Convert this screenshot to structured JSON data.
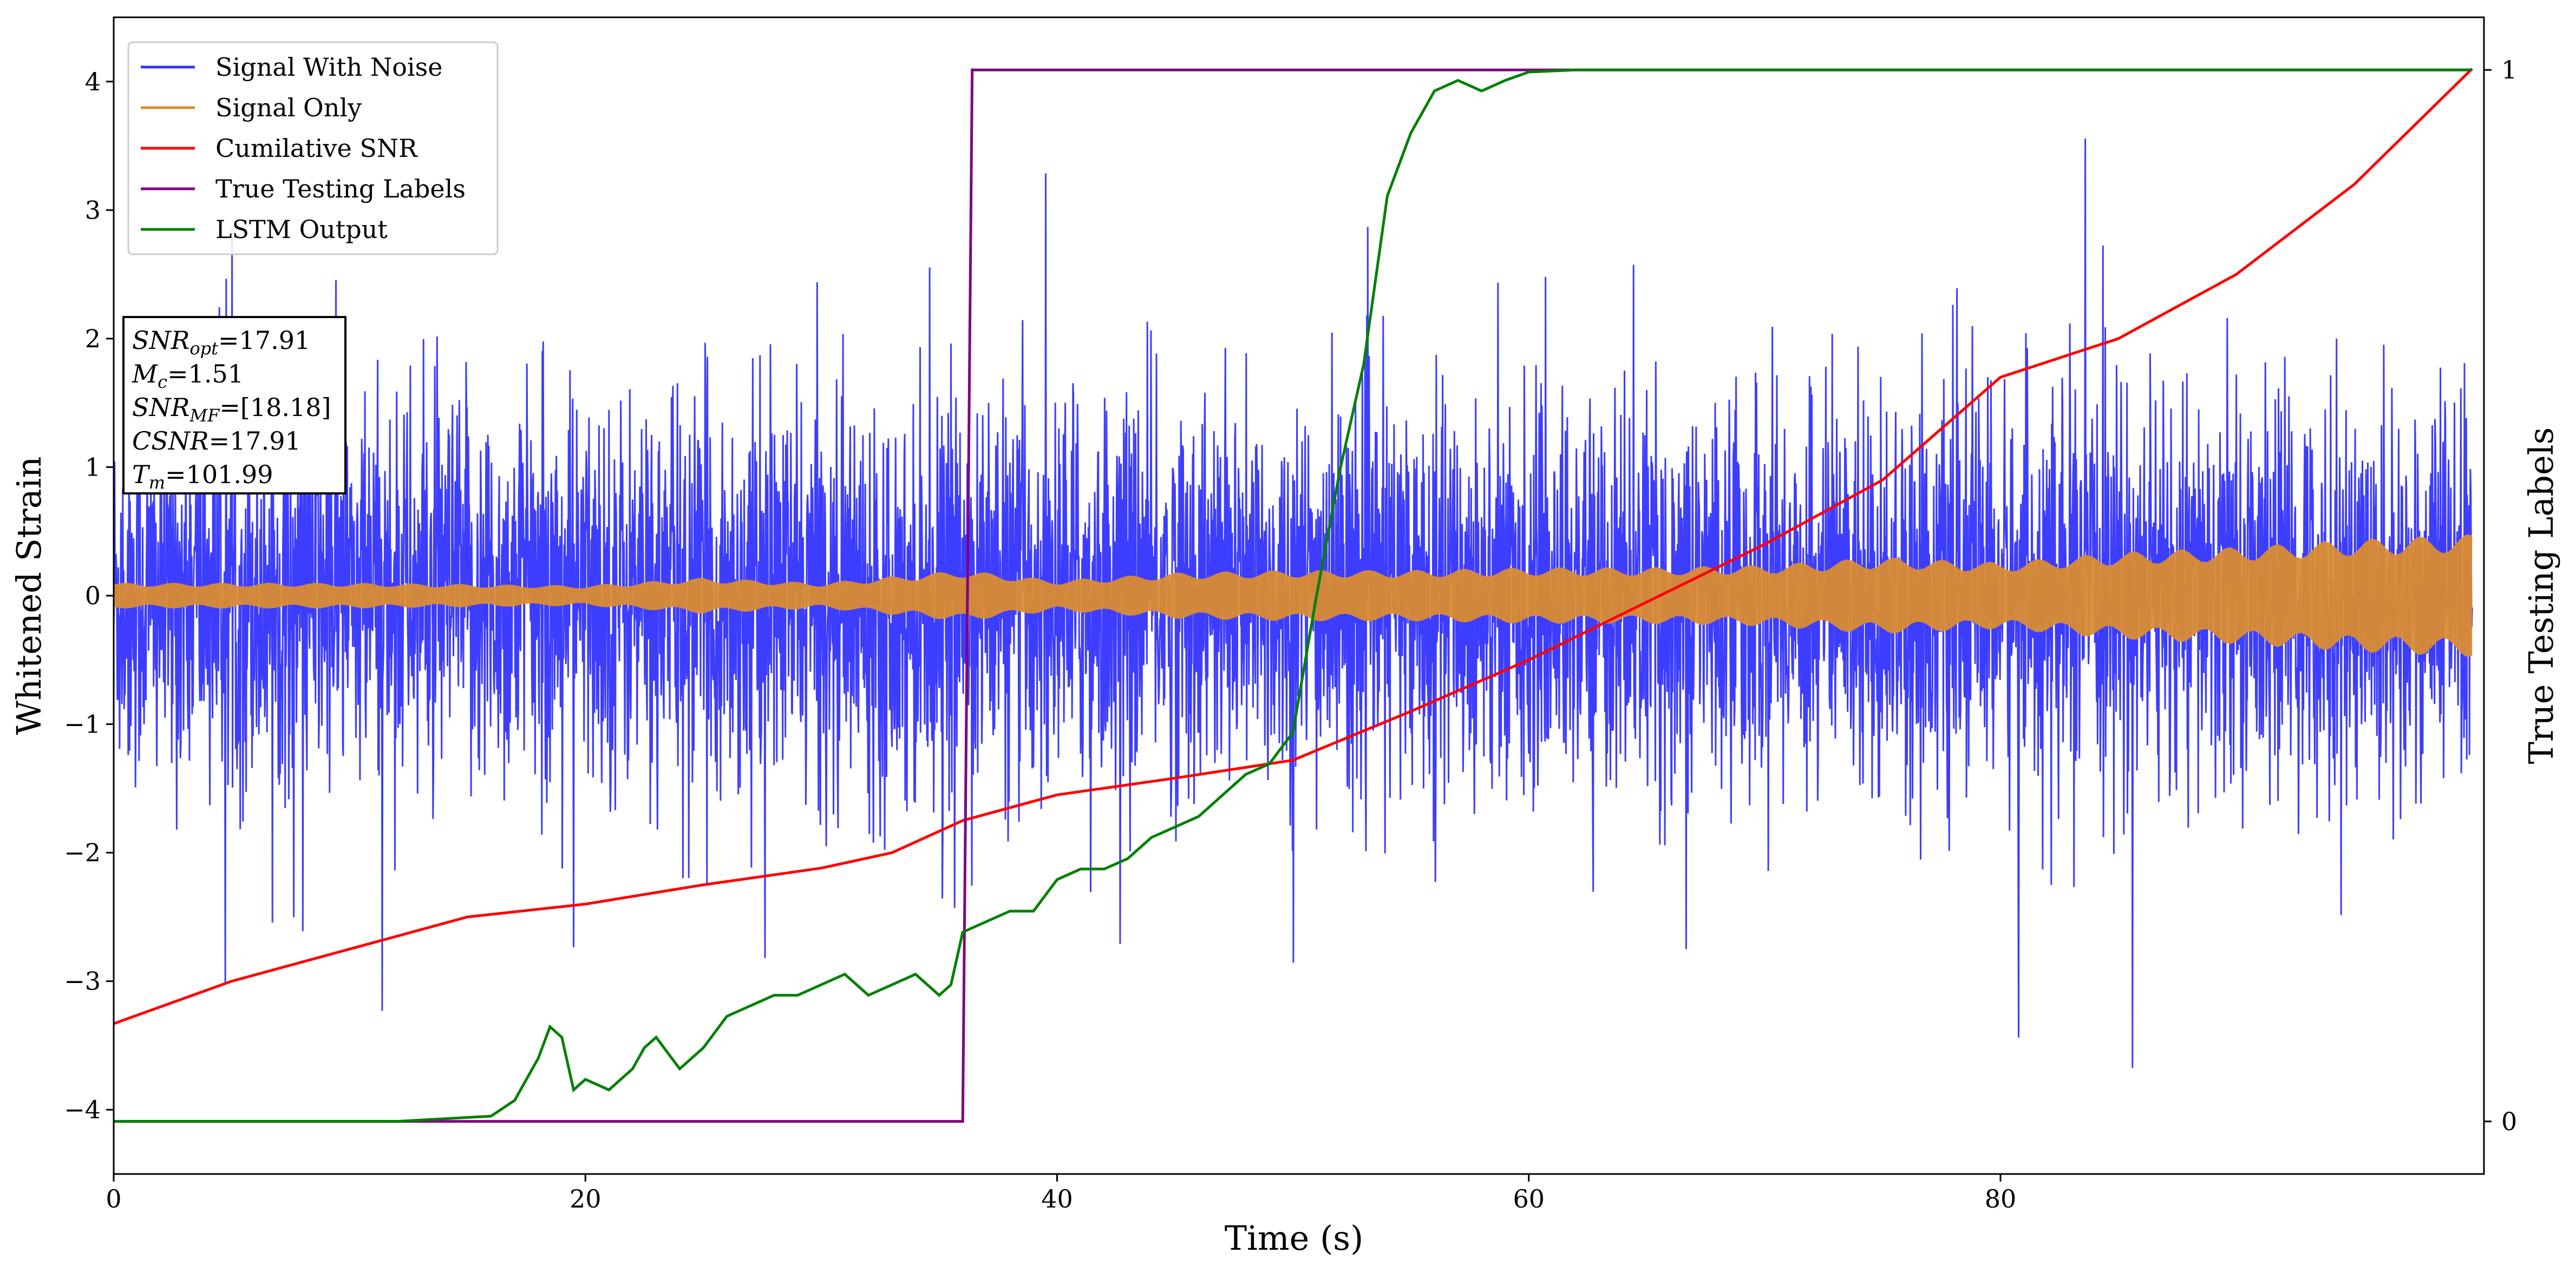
{
  "chart_data": {
    "type": "line",
    "xlabel": "Time (s)",
    "ylabel": "Whitened Strain",
    "y2label": "True Testing Labels",
    "xlim": [
      0,
      100
    ],
    "ylim": [
      -4.5,
      4.5
    ],
    "y2lim": [
      -0.05,
      1.05
    ],
    "xticks": [
      "0",
      "20",
      "40",
      "60",
      "80"
    ],
    "yticks": [
      "−4",
      "−3",
      "−2",
      "−1",
      "0",
      "1",
      "2",
      "3",
      "4"
    ],
    "y2ticks": [
      "0",
      "1"
    ],
    "grid": false,
    "legend_position": "top-left",
    "legend": [
      "Signal With Noise",
      "Signal Only",
      "Cumilative SNR",
      "True Testing Labels",
      "LSTM Output"
    ],
    "colors": {
      "signal_with_noise": "#3333ff",
      "signal_only": "#d98c33",
      "cumulative_snr": "#ff0000",
      "true_labels": "#800080",
      "lstm_output": "#008000"
    },
    "series": [
      {
        "name": "Signal With Noise",
        "axis": "left",
        "description_values": "dense whitened noise, amplitude mostly within ±2 with spikes to about ±4",
        "envelope_x": [
          0,
          100
        ],
        "envelope_typical": 1.4,
        "extreme_max": 4.1,
        "extreme_min": -3.7
      },
      {
        "name": "Signal Only",
        "axis": "left",
        "envelope_x": [
          0,
          10,
          20,
          25,
          30,
          36,
          40,
          45,
          50,
          55,
          60,
          65,
          70,
          75,
          80,
          85,
          90,
          95,
          100
        ],
        "envelope_amp": [
          0.1,
          0.1,
          0.08,
          0.14,
          0.1,
          0.2,
          0.12,
          0.18,
          0.2,
          0.2,
          0.22,
          0.22,
          0.24,
          0.3,
          0.26,
          0.34,
          0.38,
          0.44,
          0.48
        ]
      },
      {
        "name": "Cumilative SNR",
        "axis": "left",
        "x": [
          0,
          5,
          10,
          15,
          20,
          25,
          30,
          33,
          36,
          40,
          45,
          50,
          55,
          60,
          65,
          70,
          75,
          80,
          85,
          90,
          95,
          100
        ],
        "y": [
          -3.33,
          -3.0,
          -2.75,
          -2.5,
          -2.4,
          -2.25,
          -2.12,
          -2.0,
          -1.75,
          -1.55,
          -1.42,
          -1.28,
          -0.9,
          -0.5,
          -0.05,
          0.4,
          0.9,
          1.7,
          2.0,
          2.5,
          3.2,
          4.1
        ]
      },
      {
        "name": "True Testing Labels",
        "axis": "right",
        "x": [
          0,
          36.0,
          36.4,
          100
        ],
        "y": [
          0,
          0,
          1,
          1
        ]
      },
      {
        "name": "LSTM Output",
        "axis": "right",
        "x": [
          0,
          12,
          16,
          17,
          18,
          18.5,
          19,
          19.5,
          20,
          21,
          22,
          22.5,
          23,
          24,
          25,
          26,
          27,
          28,
          29,
          30,
          31,
          32,
          33,
          34,
          35,
          35.5,
          36,
          37,
          38,
          39,
          40,
          41,
          42,
          43,
          44,
          45,
          46,
          47,
          48,
          49,
          50,
          51,
          52,
          53,
          54,
          55,
          56,
          57,
          58,
          59,
          60,
          62,
          65,
          70,
          80,
          100
        ],
        "y": [
          0,
          0,
          0.005,
          0.02,
          0.06,
          0.09,
          0.08,
          0.03,
          0.04,
          0.03,
          0.05,
          0.07,
          0.08,
          0.05,
          0.07,
          0.1,
          0.11,
          0.12,
          0.12,
          0.13,
          0.14,
          0.12,
          0.13,
          0.14,
          0.12,
          0.13,
          0.18,
          0.19,
          0.2,
          0.2,
          0.23,
          0.24,
          0.24,
          0.25,
          0.27,
          0.28,
          0.29,
          0.31,
          0.33,
          0.34,
          0.37,
          0.5,
          0.62,
          0.72,
          0.88,
          0.94,
          0.98,
          0.99,
          0.98,
          0.99,
          0.998,
          1.0,
          1.0,
          1.0,
          1.0,
          1.0
        ]
      }
    ],
    "annotation_lines": [
      {
        "text": "=17.91",
        "symbol": "SNR",
        "sub": "opt"
      },
      {
        "text": "=1.51",
        "symbol": "M",
        "sub": "c"
      },
      {
        "text": "=[18.18]",
        "symbol": "SNR",
        "sub": "MF"
      },
      {
        "text": "=17.91",
        "symbol": "CSNR",
        "sub": ""
      },
      {
        "text": "=101.99",
        "symbol": "T",
        "sub": "m"
      }
    ]
  }
}
